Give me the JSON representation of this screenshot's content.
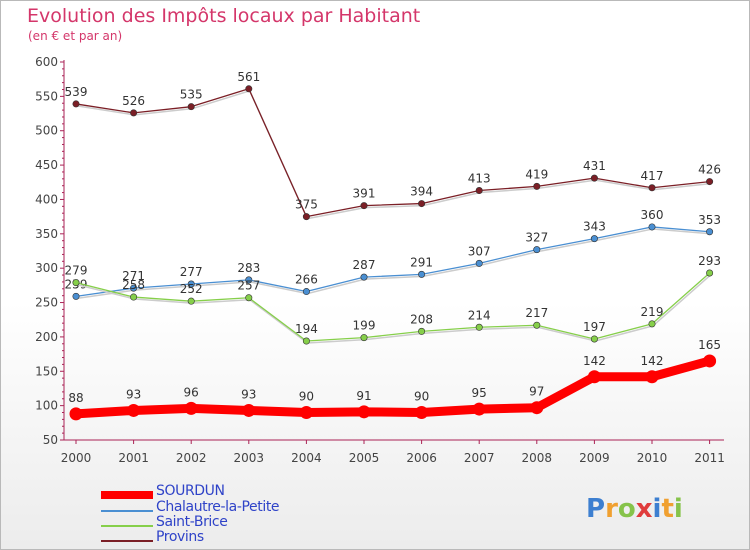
{
  "title": "Evolution des Impôts locaux par Habitant",
  "subtitle": "(en € et par an)",
  "logo_text": "Proxiti",
  "chart_data": {
    "type": "line",
    "title": "Evolution des Impôts locaux par Habitant",
    "subtitle": "(en € et par an)",
    "x": [
      "2000",
      "2001",
      "2002",
      "2003",
      "2004",
      "2005",
      "2006",
      "2007",
      "2008",
      "2009",
      "2010",
      "2011"
    ],
    "ylim": [
      50,
      600
    ],
    "yticks": [
      50,
      100,
      150,
      200,
      250,
      300,
      350,
      400,
      450,
      500,
      550,
      600
    ],
    "grid": false,
    "legend_position": "bottom-left",
    "series": [
      {
        "name": "Provins",
        "color": "#7b1f26",
        "values": [
          539,
          526,
          535,
          561,
          375,
          391,
          394,
          413,
          419,
          431,
          417,
          426
        ]
      },
      {
        "name": "Chalautre-la-Petite",
        "color": "#4a8fd2",
        "values": [
          259,
          271,
          277,
          283,
          266,
          287,
          291,
          307,
          327,
          343,
          360,
          353
        ]
      },
      {
        "name": "Saint-Brice",
        "color": "#86cf4a",
        "values": [
          279,
          258,
          252,
          257,
          194,
          199,
          208,
          214,
          217,
          197,
          219,
          293
        ]
      },
      {
        "name": "SOURDUN",
        "color": "#ff0000",
        "values": [
          88,
          93,
          96,
          93,
          90,
          91,
          90,
          95,
          97,
          142,
          142,
          165
        ]
      }
    ],
    "legend": [
      "SOURDUN",
      "Chalautre-la-Petite",
      "Saint-Brice",
      "Provins"
    ]
  }
}
